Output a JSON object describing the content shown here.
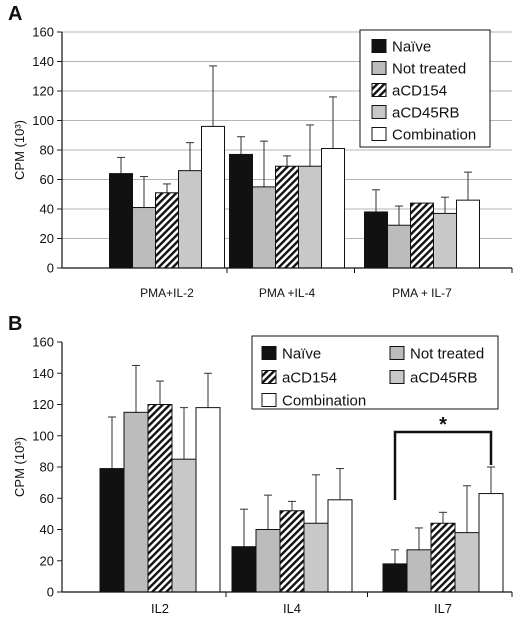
{
  "chart_data": [
    {
      "panel": "A",
      "type": "bar",
      "ylabel": "CPM (10³)",
      "ylim": [
        0,
        160
      ],
      "yticks": [
        "0",
        "20",
        "40",
        "60",
        "80",
        "100",
        "120",
        "140",
        "160"
      ],
      "grid": true,
      "legend_position": "top-right",
      "categories": [
        "PMA+IL-2",
        "PMA +IL-4",
        "PMA + IL-7"
      ],
      "series": [
        {
          "name": "Naïve",
          "values": [
            64,
            77,
            38
          ],
          "errors": [
            11,
            12,
            15
          ]
        },
        {
          "name": "Not treated",
          "values": [
            41,
            55,
            29
          ],
          "errors": [
            21,
            31,
            13
          ]
        },
        {
          "name": "aCD154",
          "values": [
            51,
            69,
            44
          ],
          "errors": [
            6,
            7,
            0
          ]
        },
        {
          "name": "aCD45RB",
          "values": [
            66,
            69,
            37
          ],
          "errors": [
            19,
            28,
            11
          ]
        },
        {
          "name": "Combination",
          "values": [
            96,
            81,
            46
          ],
          "errors": [
            41,
            35,
            19
          ]
        }
      ]
    },
    {
      "panel": "B",
      "type": "bar",
      "ylabel": "CPM (10³)",
      "ylim": [
        0,
        160
      ],
      "yticks": [
        "0",
        "20",
        "40",
        "60",
        "80",
        "100",
        "120",
        "140",
        "160"
      ],
      "grid": false,
      "legend_position": "top-right",
      "categories": [
        "IL2",
        "IL4",
        "IL7"
      ],
      "series": [
        {
          "name": "Naïve",
          "values": [
            79,
            29,
            18
          ],
          "errors": [
            33,
            24,
            9
          ]
        },
        {
          "name": "Not treated",
          "values": [
            115,
            40,
            27
          ],
          "errors": [
            30,
            22,
            14
          ]
        },
        {
          "name": "aCD154",
          "values": [
            120,
            52,
            44
          ],
          "errors": [
            15,
            6,
            7
          ]
        },
        {
          "name": "aCD45RB",
          "values": [
            85,
            44,
            38
          ],
          "errors": [
            33,
            31,
            30
          ]
        },
        {
          "name": "Combination",
          "values": [
            118,
            59,
            63
          ],
          "errors": [
            22,
            20,
            17
          ]
        }
      ],
      "annotation": "*"
    }
  ]
}
